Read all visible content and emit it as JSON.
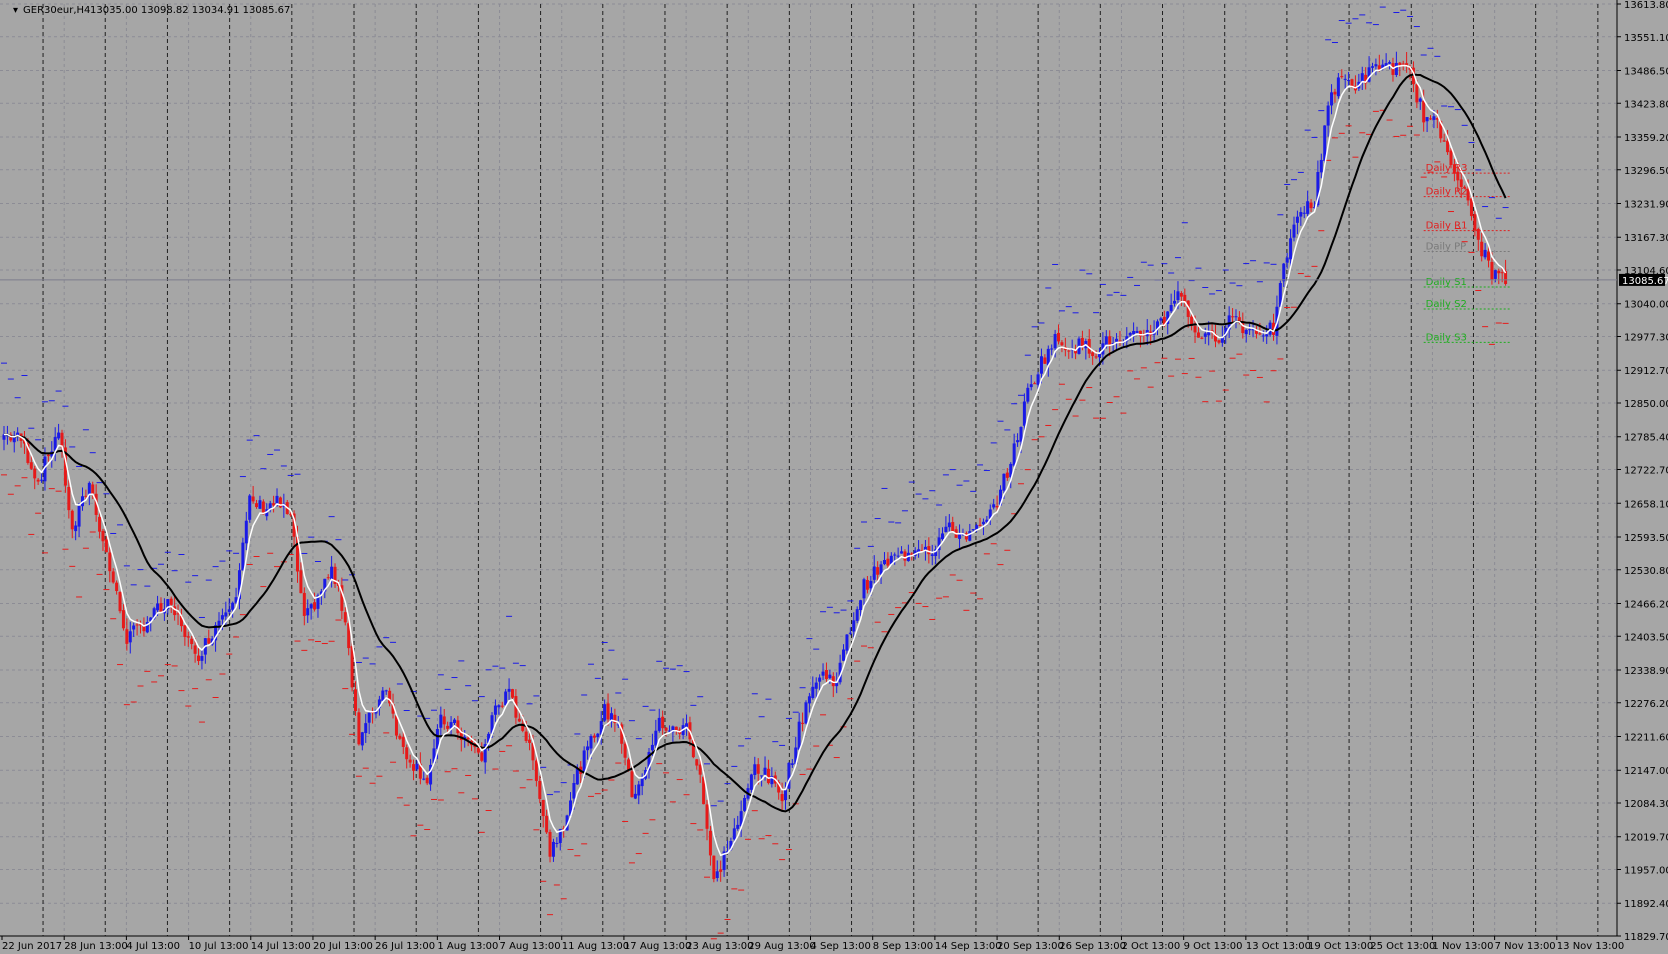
{
  "header": {
    "symbol_label": "GER30eur,H4",
    "ohlc_label": "13035.00 13098.82 13034.91 13085.67"
  },
  "colors": {
    "background": "#a6a6a6",
    "grid": "#8c8c95",
    "bull": "#1a1ae6",
    "bear": "#e61a1a",
    "fast_ma": "#ffffff",
    "slow_ma": "#000000",
    "resistance": "#e02020",
    "pivot": "#7a7a7a",
    "support": "#1fae1f",
    "price_marker_bg": "#000000",
    "price_marker_text": "#ffffff"
  },
  "chart_data": {
    "type": "candlestick",
    "x_labels": [
      "22 Jun 2017",
      "28 Jun 13:00",
      "4 Jul 13:00",
      "10 Jul 13:00",
      "14 Jul 13:00",
      "20 Jul 13:00",
      "26 Jul 13:00",
      "1 Aug 13:00",
      "7 Aug 13:00",
      "11 Aug 13:00",
      "17 Aug 13:00",
      "23 Aug 13:00",
      "29 Aug 13:00",
      "4 Sep 13:00",
      "8 Sep 13:00",
      "14 Sep 13:00",
      "20 Sep 13:00",
      "26 Sep 13:00",
      "2 Oct 13:00",
      "9 Oct 13:00",
      "13 Oct 13:00",
      "19 Oct 13:00",
      "25 Oct 13:00",
      "1 Nov 13:00",
      "7 Nov 13:00",
      "13 Nov 13:00"
    ],
    "y_ticks": [
      "13613.80",
      "13551.10",
      "13486.50",
      "13423.80",
      "13359.20",
      "13296.50",
      "13231.90",
      "13167.30",
      "13104.60",
      "13040.00",
      "12977.30",
      "12912.70",
      "12850.00",
      "12785.40",
      "12722.70",
      "12658.10",
      "12593.50",
      "12530.80",
      "12466.20",
      "12403.50",
      "12338.90",
      "12276.20",
      "12211.60",
      "12147.00",
      "12084.30",
      "12019.70",
      "11957.00",
      "11892.40",
      "11829.70"
    ],
    "ylim": [
      11829.7,
      13613.8
    ],
    "current_price": "13085.67",
    "close_path": [
      [
        0,
        12790
      ],
      [
        5,
        12780
      ],
      [
        10,
        12700
      ],
      [
        16,
        12800
      ],
      [
        20,
        12600
      ],
      [
        25,
        12700
      ],
      [
        30,
        12560
      ],
      [
        36,
        12400
      ],
      [
        40,
        12420
      ],
      [
        44,
        12450
      ],
      [
        48,
        12460
      ],
      [
        52,
        12430
      ],
      [
        56,
        12360
      ],
      [
        60,
        12400
      ],
      [
        64,
        12450
      ],
      [
        68,
        12490
      ],
      [
        72,
        12660
      ],
      [
        76,
        12650
      ],
      [
        80,
        12660
      ],
      [
        84,
        12630
      ],
      [
        88,
        12430
      ],
      [
        92,
        12480
      ],
      [
        96,
        12530
      ],
      [
        100,
        12440
      ],
      [
        104,
        12200
      ],
      [
        108,
        12260
      ],
      [
        112,
        12310
      ],
      [
        116,
        12200
      ],
      [
        120,
        12160
      ],
      [
        124,
        12130
      ],
      [
        128,
        12240
      ],
      [
        132,
        12230
      ],
      [
        136,
        12200
      ],
      [
        140,
        12170
      ],
      [
        144,
        12270
      ],
      [
        148,
        12290
      ],
      [
        152,
        12230
      ],
      [
        156,
        12140
      ],
      [
        160,
        11990
      ],
      [
        164,
        12050
      ],
      [
        168,
        12140
      ],
      [
        172,
        12200
      ],
      [
        176,
        12260
      ],
      [
        180,
        12240
      ],
      [
        184,
        12100
      ],
      [
        188,
        12150
      ],
      [
        192,
        12240
      ],
      [
        196,
        12220
      ],
      [
        200,
        12230
      ],
      [
        204,
        12140
      ],
      [
        208,
        11930
      ],
      [
        212,
        12000
      ],
      [
        216,
        12060
      ],
      [
        220,
        12160
      ],
      [
        224,
        12130
      ],
      [
        228,
        12100
      ],
      [
        232,
        12200
      ],
      [
        236,
        12300
      ],
      [
        240,
        12330
      ],
      [
        244,
        12320
      ],
      [
        248,
        12420
      ],
      [
        252,
        12500
      ],
      [
        256,
        12530
      ],
      [
        260,
        12550
      ],
      [
        264,
        12560
      ],
      [
        268,
        12580
      ],
      [
        272,
        12570
      ],
      [
        276,
        12610
      ],
      [
        280,
        12600
      ],
      [
        284,
        12600
      ],
      [
        288,
        12620
      ],
      [
        292,
        12680
      ],
      [
        296,
        12760
      ],
      [
        300,
        12870
      ],
      [
        304,
        12930
      ],
      [
        308,
        12970
      ],
      [
        312,
        12960
      ],
      [
        316,
        12960
      ],
      [
        320,
        12950
      ],
      [
        324,
        12970
      ],
      [
        328,
        12960
      ],
      [
        332,
        12980
      ],
      [
        336,
        12990
      ],
      [
        340,
        13010
      ],
      [
        344,
        13070
      ],
      [
        348,
        13000
      ],
      [
        352,
        12970
      ],
      [
        356,
        12980
      ],
      [
        360,
        13020
      ],
      [
        364,
        12990
      ],
      [
        368,
        12990
      ],
      [
        372,
        12990
      ],
      [
        376,
        13140
      ],
      [
        380,
        13220
      ],
      [
        384,
        13230
      ],
      [
        388,
        13430
      ],
      [
        392,
        13470
      ],
      [
        396,
        13460
      ],
      [
        400,
        13480
      ],
      [
        404,
        13500
      ],
      [
        408,
        13490
      ],
      [
        412,
        13480
      ],
      [
        416,
        13400
      ],
      [
        420,
        13380
      ],
      [
        424,
        13320
      ],
      [
        428,
        13250
      ],
      [
        432,
        13160
      ],
      [
        436,
        13100
      ],
      [
        440,
        13085
      ]
    ],
    "series": [
      {
        "name": "fast_ma",
        "kind": "moving_average_fast"
      },
      {
        "name": "slow_ma",
        "kind": "moving_average_slow"
      }
    ],
    "pivot_levels": [
      {
        "label": "Daily R3",
        "value": 13290,
        "color_key": "resistance"
      },
      {
        "label": "Daily R2",
        "value": 13245,
        "color_key": "resistance"
      },
      {
        "label": "Daily R1",
        "value": 13180,
        "color_key": "resistance"
      },
      {
        "label": "Daily PP",
        "value": 13140,
        "color_key": "pivot"
      },
      {
        "label": "Daily S1",
        "value": 13072,
        "color_key": "support"
      },
      {
        "label": "Daily S2",
        "value": 13030,
        "color_key": "support"
      },
      {
        "label": "Daily S3",
        "value": 12966,
        "color_key": "support"
      }
    ],
    "grid": true
  }
}
